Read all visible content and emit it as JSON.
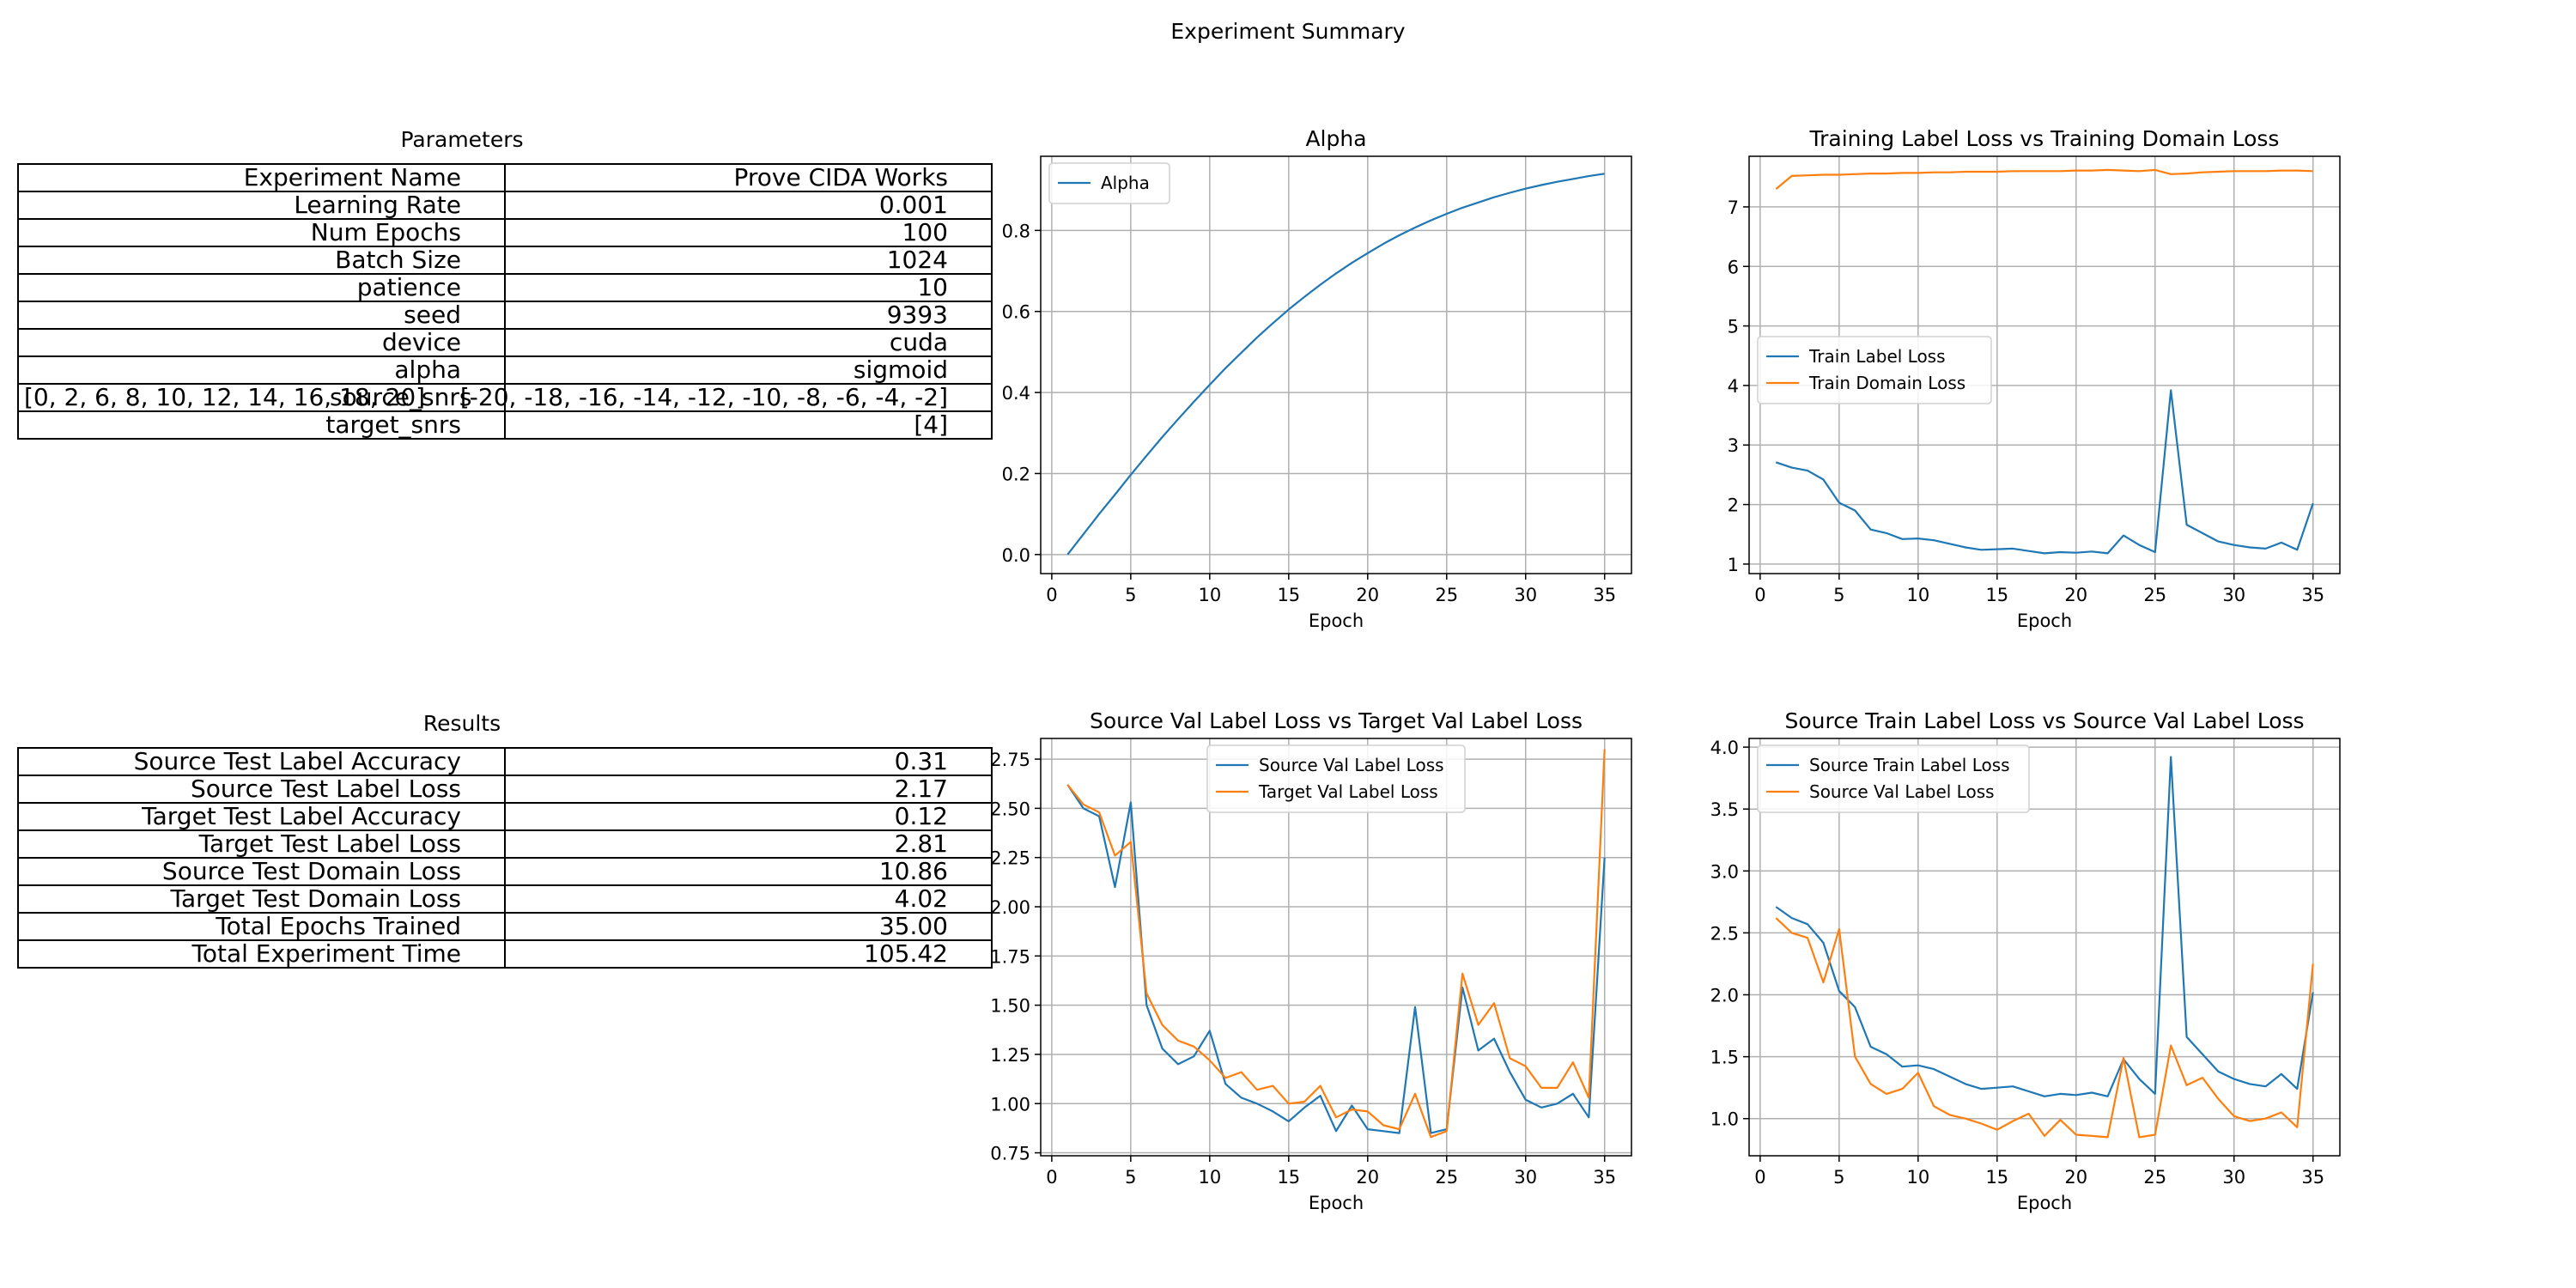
{
  "suptitle": "Experiment Summary",
  "parameters": {
    "title": "Parameters",
    "rows": [
      {
        "key": "Experiment Name",
        "value": "Prove CIDA Works"
      },
      {
        "key": "Learning Rate",
        "value": "0.001"
      },
      {
        "key": "Num Epochs",
        "value": "100"
      },
      {
        "key": "Batch Size",
        "value": "1024"
      },
      {
        "key": "patience",
        "value": "10"
      },
      {
        "key": "seed",
        "value": "9393"
      },
      {
        "key": "device",
        "value": "cuda"
      },
      {
        "key": "alpha",
        "value": "sigmoid"
      },
      {
        "key": "[0, 2, 6, 8, 10, 12, 14, 16, 18, 20]",
        "value": "source_snrs",
        "extra": "[-20, -18, -16, -14, -12, -10, -8, -6, -4, -2]"
      },
      {
        "key": "target_snrs",
        "value": "[4]"
      }
    ]
  },
  "results": {
    "title": "Results",
    "rows": [
      {
        "key": "Source Test Label Accuracy",
        "value": "0.31"
      },
      {
        "key": "Source Test Label Loss",
        "value": "2.17"
      },
      {
        "key": "Target Test Label Accuracy",
        "value": "0.12"
      },
      {
        "key": "Target Test Label Loss",
        "value": "2.81"
      },
      {
        "key": "Source Test Domain Loss",
        "value": "10.86"
      },
      {
        "key": "Target Test Domain Loss",
        "value": "4.02"
      },
      {
        "key": "Total Epochs Trained",
        "value": "35.00"
      },
      {
        "key": "Total Experiment Time",
        "value": "105.42"
      }
    ]
  },
  "colors": {
    "series1": "#1f77b4",
    "series2": "#ff7f0e",
    "grid": "#b0b0b0"
  },
  "chart_data": [
    {
      "id": "alpha",
      "type": "line",
      "title": "Alpha",
      "xlabel": "Epoch",
      "ylabel": "",
      "xlim": [
        -0.7,
        36.7
      ],
      "ylim": [
        -0.047,
        0.983
      ],
      "xticks": [
        0,
        5,
        10,
        15,
        20,
        25,
        30,
        35
      ],
      "yticks": [
        0.0,
        0.2,
        0.4,
        0.6,
        0.8
      ],
      "ytick_labels": [
        "0.0",
        "0.2",
        "0.4",
        "0.6",
        "0.8"
      ],
      "grid": true,
      "legend": "upper left",
      "x": [
        1,
        2,
        3,
        4,
        5,
        6,
        7,
        8,
        9,
        10,
        11,
        12,
        13,
        14,
        15,
        16,
        17,
        18,
        19,
        20,
        21,
        22,
        23,
        24,
        25,
        26,
        27,
        28,
        29,
        30,
        31,
        32,
        33,
        34,
        35
      ],
      "series": [
        {
          "name": "Alpha",
          "values": [
            0.0,
            0.05,
            0.1,
            0.148,
            0.197,
            0.244,
            0.29,
            0.334,
            0.377,
            0.419,
            0.46,
            0.498,
            0.536,
            0.571,
            0.605,
            0.636,
            0.666,
            0.694,
            0.72,
            0.744,
            0.767,
            0.788,
            0.807,
            0.825,
            0.841,
            0.856,
            0.869,
            0.882,
            0.893,
            0.903,
            0.912,
            0.92,
            0.927,
            0.934,
            0.94
          ]
        }
      ]
    },
    {
      "id": "train",
      "type": "line",
      "title": "Training Label Loss vs Training Domain Loss",
      "xlabel": "Epoch",
      "ylabel": "",
      "xlim": [
        -0.7,
        36.7
      ],
      "ylim": [
        0.84,
        7.85
      ],
      "xticks": [
        0,
        5,
        10,
        15,
        20,
        25,
        30,
        35
      ],
      "yticks": [
        1,
        2,
        3,
        4,
        5,
        6,
        7
      ],
      "ytick_labels": [
        "1",
        "2",
        "3",
        "4",
        "5",
        "6",
        "7"
      ],
      "grid": true,
      "legend": "center left",
      "x": [
        1,
        2,
        3,
        4,
        5,
        6,
        7,
        8,
        9,
        10,
        11,
        12,
        13,
        14,
        15,
        16,
        17,
        18,
        19,
        20,
        21,
        22,
        23,
        24,
        25,
        26,
        27,
        28,
        29,
        30,
        31,
        32,
        33,
        34,
        35
      ],
      "series": [
        {
          "name": "Train Label Loss",
          "values": [
            2.71,
            2.62,
            2.57,
            2.42,
            2.03,
            1.9,
            1.58,
            1.52,
            1.42,
            1.43,
            1.4,
            1.34,
            1.28,
            1.24,
            1.25,
            1.26,
            1.22,
            1.18,
            1.2,
            1.19,
            1.21,
            1.18,
            1.48,
            1.32,
            1.2,
            3.92,
            1.66,
            1.52,
            1.38,
            1.32,
            1.28,
            1.26,
            1.36,
            1.24,
            2.02
          ]
        },
        {
          "name": "Train Domain Loss",
          "values": [
            7.3,
            7.52,
            7.53,
            7.54,
            7.54,
            7.55,
            7.56,
            7.56,
            7.57,
            7.57,
            7.58,
            7.58,
            7.59,
            7.59,
            7.59,
            7.6,
            7.6,
            7.6,
            7.6,
            7.61,
            7.61,
            7.62,
            7.61,
            7.6,
            7.62,
            7.55,
            7.56,
            7.58,
            7.59,
            7.6,
            7.6,
            7.6,
            7.61,
            7.61,
            7.6
          ]
        }
      ]
    },
    {
      "id": "val",
      "type": "line",
      "title": "Source Val Label Loss vs Target Val Label Loss",
      "xlabel": "Epoch",
      "ylabel": "",
      "xlim": [
        -0.7,
        36.7
      ],
      "ylim": [
        0.735,
        2.855
      ],
      "xticks": [
        0,
        5,
        10,
        15,
        20,
        25,
        30,
        35
      ],
      "yticks": [
        0.75,
        1.0,
        1.25,
        1.5,
        1.75,
        2.0,
        2.25,
        2.5,
        2.75
      ],
      "ytick_labels": [
        "0.75",
        "1.00",
        "1.25",
        "1.50",
        "1.75",
        "2.00",
        "2.25",
        "2.50",
        "2.75"
      ],
      "grid": true,
      "legend": "upper center",
      "x": [
        1,
        2,
        3,
        4,
        5,
        6,
        7,
        8,
        9,
        10,
        11,
        12,
        13,
        14,
        15,
        16,
        17,
        18,
        19,
        20,
        21,
        22,
        23,
        24,
        25,
        26,
        27,
        28,
        29,
        30,
        31,
        32,
        33,
        34,
        35
      ],
      "series": [
        {
          "name": "Source Val Label Loss",
          "values": [
            2.62,
            2.5,
            2.46,
            2.1,
            2.53,
            1.5,
            1.28,
            1.2,
            1.24,
            1.37,
            1.1,
            1.03,
            1.0,
            0.96,
            0.91,
            0.98,
            1.04,
            0.86,
            0.99,
            0.87,
            0.86,
            0.85,
            1.49,
            0.85,
            0.87,
            1.59,
            1.27,
            1.33,
            1.16,
            1.02,
            0.98,
            1.0,
            1.05,
            0.93,
            2.25
          ]
        },
        {
          "name": "Target Val Label Loss",
          "values": [
            2.62,
            2.52,
            2.48,
            2.26,
            2.33,
            1.56,
            1.4,
            1.32,
            1.29,
            1.22,
            1.13,
            1.16,
            1.07,
            1.09,
            1.0,
            1.01,
            1.09,
            0.93,
            0.97,
            0.96,
            0.89,
            0.87,
            1.05,
            0.83,
            0.86,
            1.66,
            1.4,
            1.51,
            1.23,
            1.19,
            1.08,
            1.08,
            1.21,
            1.03,
            2.8
          ]
        }
      ]
    },
    {
      "id": "srcval",
      "type": "line",
      "title": "Source Train Label Loss vs Source Val Label Loss",
      "xlabel": "Epoch",
      "ylabel": "",
      "xlim": [
        -0.7,
        36.7
      ],
      "ylim": [
        0.7,
        4.07
      ],
      "xticks": [
        0,
        5,
        10,
        15,
        20,
        25,
        30,
        35
      ],
      "yticks": [
        1.0,
        1.5,
        2.0,
        2.5,
        3.0,
        3.5,
        4.0
      ],
      "ytick_labels": [
        "1.0",
        "1.5",
        "2.0",
        "2.5",
        "3.0",
        "3.5",
        "4.0"
      ],
      "grid": true,
      "legend": "upper left",
      "x": [
        1,
        2,
        3,
        4,
        5,
        6,
        7,
        8,
        9,
        10,
        11,
        12,
        13,
        14,
        15,
        16,
        17,
        18,
        19,
        20,
        21,
        22,
        23,
        24,
        25,
        26,
        27,
        28,
        29,
        30,
        31,
        32,
        33,
        34,
        35
      ],
      "series": [
        {
          "name": "Source Train Label Loss",
          "values": [
            2.71,
            2.62,
            2.57,
            2.42,
            2.03,
            1.9,
            1.58,
            1.52,
            1.42,
            1.43,
            1.4,
            1.34,
            1.28,
            1.24,
            1.25,
            1.26,
            1.22,
            1.18,
            1.2,
            1.19,
            1.21,
            1.18,
            1.48,
            1.32,
            1.2,
            3.92,
            1.66,
            1.52,
            1.38,
            1.32,
            1.28,
            1.26,
            1.36,
            1.24,
            2.02
          ]
        },
        {
          "name": "Source Val Label Loss",
          "values": [
            2.62,
            2.5,
            2.46,
            2.1,
            2.53,
            1.5,
            1.28,
            1.2,
            1.24,
            1.37,
            1.1,
            1.03,
            1.0,
            0.96,
            0.91,
            0.98,
            1.04,
            0.86,
            0.99,
            0.87,
            0.86,
            0.85,
            1.49,
            0.85,
            0.87,
            1.59,
            1.27,
            1.33,
            1.16,
            1.02,
            0.98,
            1.0,
            1.05,
            0.93,
            2.25
          ]
        }
      ]
    }
  ]
}
